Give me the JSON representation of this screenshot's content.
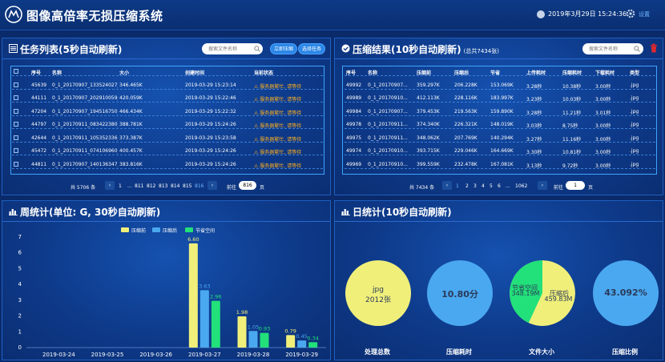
{
  "app": {
    "title": "图像高倍率无损压缩系统",
    "datetime": "2019年3月29日 15:24:36",
    "settings_label": "设置"
  },
  "tasks": {
    "title": "任务列表(5秒自动刷新)",
    "search_placeholder": "搜索文件名称",
    "btn_compress": "立即压缩",
    "btn_select": "选择任务",
    "columns": [
      "序号",
      "名称",
      "大小",
      "创建时间",
      "当前状态"
    ],
    "rows": [
      [
        "45639",
        "0_1_20170907_133524027_...",
        "346.465K",
        "2019-03-29 15:23:14",
        "服务器繁忙, 请等待"
      ],
      [
        "44111",
        "0_1_20170907_202910059_...",
        "420.059K",
        "2019-03-29 15:22:46",
        "服务器繁忙, 请等待"
      ],
      [
        "47204",
        "0_1_20170907_194516750_...",
        "466.434K",
        "2019-03-29 15:22:32",
        "服务器繁忙, 请等待"
      ],
      [
        "44797",
        "0_1_20170911_083422380_...",
        "388.781K",
        "2019-03-29 15:24:26",
        "服务器繁忙, 请等待"
      ],
      [
        "42644",
        "0_1_20170911_105352336_...",
        "373.387K",
        "2019-03-29 15:23:58",
        "服务器繁忙, 请等待"
      ],
      [
        "45472",
        "0_1_20170911_074106960_...",
        "400.457K",
        "2019-03-29 15:24:26",
        "服务器繁忙, 请等待"
      ],
      [
        "44811",
        "0_1_20170907_140136347_...",
        "383.816K",
        "2019-03-29 15:24:26",
        "服务器繁忙, 请等待"
      ]
    ],
    "pager": {
      "total": "共 5706 条",
      "pages": [
        "1",
        "...",
        "811",
        "812",
        "813",
        "814",
        "815",
        "816"
      ],
      "goto_label": "前往",
      "goto_value": "816",
      "page_unit": "页"
    }
  },
  "results": {
    "title": "压缩结果(10秒自动刷新)",
    "subtitle": "(总共7434张)",
    "search_placeholder": "搜索文件名称",
    "columns": [
      "序号",
      "名称",
      "压缩前",
      "压缩后",
      "节省",
      "上传耗时",
      "压缩耗时",
      "下载耗时",
      "类型"
    ],
    "rows": [
      [
        "49992",
        "0_1_20170907...",
        "359.297K",
        "206.228K",
        "153.069K",
        "3.28秒",
        "10.38秒",
        "3.00秒",
        ".jpg"
      ],
      [
        "49989",
        "0_1_20170910...",
        "412.113K",
        "228.116K",
        "183.997K",
        "3.23秒",
        "10.03秒",
        "3.00秒",
        ".jpg"
      ],
      [
        "49984",
        "0_1_20170907...",
        "379.453K",
        "219.563K",
        "159.890K",
        "3.28秒",
        "11.21秒",
        "3.01秒",
        ".jpg"
      ],
      [
        "49978",
        "0_1_20170911...",
        "374.340K",
        "226.321K",
        "148.019K",
        "3.03秒",
        "8.75秒",
        "3.00秒",
        ".jpg"
      ],
      [
        "49975",
        "0_1_20170911...",
        "348.062K",
        "207.769K",
        "140.294K",
        "3.27秒",
        "11.16秒",
        "3.00秒",
        ".jpg"
      ],
      [
        "49974",
        "0_1_20170910...",
        "393.715K",
        "229.046K",
        "164.669K",
        "3.30秒",
        "10.81秒",
        "3.00秒",
        ".jpg"
      ],
      [
        "49969",
        "0_1_20170910...",
        "399.559K",
        "232.478K",
        "167.081K",
        "3.13秒",
        "9.72秒",
        "3.00秒",
        ".jpg"
      ]
    ],
    "pager": {
      "total": "共 7434 条",
      "pages": [
        "1",
        "2",
        "3",
        "4",
        "5",
        "6",
        "...",
        "1062"
      ],
      "goto_label": "前往",
      "goto_value": "1",
      "page_unit": "页"
    }
  },
  "weekly": {
    "title": "周统计(单位: G, 30秒自动刷新)",
    "legend": [
      "压缩前",
      "压缩后",
      "节省空间"
    ]
  },
  "daily": {
    "title": "日统计(10秒自动刷新)",
    "stats": [
      {
        "name": "处理总数",
        "text1": "jpg",
        "text2": "2012张"
      },
      {
        "name": "压缩耗时",
        "text1": "10.80分"
      },
      {
        "name": "文件大小",
        "slice1_label": "节省空间",
        "slice1_value": "348.19M",
        "slice2_label": "压缩后",
        "slice2_value": "459.83M"
      },
      {
        "name": "压缩比例",
        "text1": "43.092%"
      }
    ]
  },
  "colors": {
    "before": "#f0ef7a",
    "after": "#4aa8f0",
    "saved": "#22e07a"
  },
  "chart_data": {
    "type": "bar",
    "categories": [
      "2019-03-24",
      "2019-03-25",
      "2019-03-26",
      "2019-03-27",
      "2019-03-28",
      "2019-03-29"
    ],
    "series": [
      {
        "name": "压缩前",
        "values": [
          0,
          0,
          0,
          6.6,
          1.98,
          0.79
        ]
      },
      {
        "name": "压缩后",
        "values": [
          0,
          0,
          0,
          3.63,
          1.05,
          0.45
        ]
      },
      {
        "name": "节省空间",
        "values": [
          0,
          0,
          0,
          2.96,
          0.93,
          0.34
        ]
      }
    ],
    "ylim": [
      0,
      7
    ],
    "yticks": [
      0,
      1,
      2,
      3,
      4,
      5,
      6,
      7
    ],
    "legend_position": "top"
  }
}
